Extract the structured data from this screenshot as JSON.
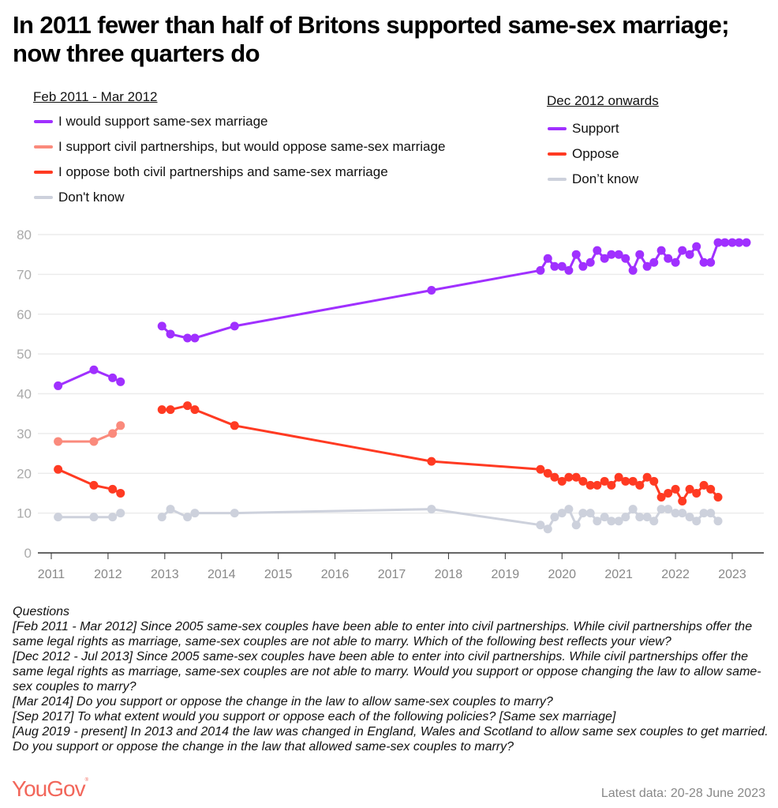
{
  "title": "In 2011 fewer than half of Britons supported same-sex marriage; now three quarters do",
  "legend_early": {
    "heading": "Feb 2011 - Mar 2012",
    "items": [
      {
        "label": "I would support same-sex marriage",
        "color": "#a030ff"
      },
      {
        "label": "I support civil partnerships, but would oppose same-sex marriage",
        "color": "#fa8a7c"
      },
      {
        "label": "I oppose both civil partnerships and same-sex marriage",
        "color": "#ff3a22"
      },
      {
        "label": "Don't know",
        "color": "#cdd1dc"
      }
    ]
  },
  "legend_late": {
    "heading": "Dec 2012 onwards",
    "items": [
      {
        "label": "Support",
        "color": "#a030ff"
      },
      {
        "label": "Oppose",
        "color": "#ff3a22"
      },
      {
        "label": "Don’t know",
        "color": "#cdd1dc"
      }
    ]
  },
  "chart_data": {
    "type": "line",
    "title": "In 2011 fewer than half of Britons supported same-sex marriage; now three quarters do",
    "xlabel": "",
    "ylabel": "",
    "ylim": [
      0,
      80
    ],
    "xlim": [
      2010.9,
      2023.7
    ],
    "yticks": [
      0,
      10,
      20,
      30,
      40,
      50,
      60,
      70,
      80
    ],
    "xticks": [
      "2011",
      "2012",
      "2013",
      "2014",
      "2015",
      "2016",
      "2017",
      "2018",
      "2019",
      "2020",
      "2021",
      "2022",
      "2023"
    ],
    "grid": true,
    "legend_placement": "top",
    "series": [
      {
        "name": "I would support same-sex marriage",
        "color": "#a030ff",
        "x": [
          2011.12,
          2011.75,
          2012.08,
          2012.22
        ],
        "values": [
          42,
          46,
          44,
          43
        ]
      },
      {
        "name": "I support civil partnerships, but would oppose same-sex marriage",
        "color": "#fa8a7c",
        "x": [
          2011.12,
          2011.75,
          2012.08,
          2012.22
        ],
        "values": [
          28,
          28,
          30,
          32
        ]
      },
      {
        "name": "I oppose both civil partnerships and same-sex marriage",
        "color": "#ff3a22",
        "x": [
          2011.12,
          2011.75,
          2012.08,
          2012.22
        ],
        "values": [
          21,
          17,
          16,
          15
        ]
      },
      {
        "name": "Don't know (Feb 2011 - Mar 2012)",
        "color": "#cdd1dc",
        "x": [
          2011.12,
          2011.75,
          2012.08,
          2012.22
        ],
        "values": [
          9,
          9,
          9,
          10
        ]
      },
      {
        "name": "Support",
        "color": "#a030ff",
        "x": [
          2012.95,
          2013.1,
          2013.4,
          2013.53,
          2014.23,
          2017.7,
          2019.62,
          2019.75,
          2019.87,
          2020.0,
          2020.12,
          2020.25,
          2020.37,
          2020.5,
          2020.62,
          2020.75,
          2020.87,
          2021.0,
          2021.12,
          2021.25,
          2021.37,
          2021.5,
          2021.62,
          2021.75,
          2021.87,
          2022.0,
          2022.12,
          2022.25,
          2022.37,
          2022.5,
          2022.62,
          2022.75,
          2022.87,
          2023.0,
          2023.12,
          2023.25
        ],
        "values": [
          57,
          55,
          54,
          54,
          57,
          66,
          71,
          74,
          72,
          72,
          71,
          75,
          72,
          73,
          76,
          74,
          75,
          75,
          74,
          71,
          75,
          72,
          73,
          76,
          74,
          73,
          76,
          75,
          77,
          73,
          73,
          78,
          78,
          78,
          78,
          78
        ]
      },
      {
        "name": "Oppose",
        "color": "#ff3a22",
        "x": [
          2012.95,
          2013.1,
          2013.4,
          2013.53,
          2014.23,
          2017.7,
          2019.62,
          2019.75,
          2019.87,
          2020.0,
          2020.12,
          2020.25,
          2020.37,
          2020.5,
          2020.62,
          2020.75,
          2020.87,
          2021.0,
          2021.12,
          2021.25,
          2021.37,
          2021.5,
          2021.62,
          2021.75,
          2021.87,
          2022.0,
          2022.12,
          2022.25,
          2022.37,
          2022.5,
          2022.62,
          2022.75
        ],
        "values": [
          36,
          36,
          37,
          36,
          32,
          23,
          21,
          20,
          19,
          18,
          19,
          19,
          18,
          17,
          17,
          18,
          17,
          19,
          18,
          18,
          17,
          19,
          18,
          14,
          15,
          16,
          13,
          16,
          15,
          17,
          16,
          14
        ]
      },
      {
        "name": "Don’t know",
        "color": "#cdd1dc",
        "x": [
          2012.95,
          2013.1,
          2013.4,
          2013.53,
          2014.23,
          2017.7,
          2019.62,
          2019.75,
          2019.87,
          2020.0,
          2020.12,
          2020.25,
          2020.37,
          2020.5,
          2020.62,
          2020.75,
          2020.87,
          2021.0,
          2021.12,
          2021.25,
          2021.37,
          2021.5,
          2021.62,
          2021.75,
          2021.87,
          2022.0,
          2022.12,
          2022.25,
          2022.37,
          2022.5,
          2022.62,
          2022.75
        ],
        "values": [
          9,
          11,
          9,
          10,
          10,
          11,
          7,
          6,
          9,
          10,
          11,
          7,
          10,
          10,
          8,
          9,
          8,
          8,
          9,
          11,
          9,
          9,
          8,
          11,
          11,
          10,
          10,
          9,
          8,
          10,
          10,
          8
        ]
      }
    ]
  },
  "questions": {
    "heading": "Questions",
    "lines": [
      "[Feb 2011 - Mar 2012] Since 2005 same-sex couples have been able to enter into civil partnerships. While civil partnerships offer the same legal rights as marriage, same-sex couples are not able to marry. Which of the following best reflects your view?",
      "[Dec 2012 - Jul 2013] Since 2005 same-sex couples have been able to enter into civil partnerships. While civil partnerships offer the same legal rights as marriage, same-sex couples are not able to marry. Would you support or oppose changing the law to allow same-sex couples to marry?",
      "[Mar 2014] Do you support or oppose the change in the law to allow same-sex couples to marry?",
      "[Sep 2017] To what extent would you support or oppose each of the following policies? [Same sex marriage]",
      "[Aug 2019 - present] In 2013 and 2014 the law was changed in England, Wales and Scotland to allow same sex couples to get married. Do you support or oppose the change in the law that allowed same-sex couples to marry?"
    ]
  },
  "footer": {
    "logo": "YouGov",
    "logo_mark": "®",
    "latest": "Latest data: 20-28 June 2023"
  }
}
